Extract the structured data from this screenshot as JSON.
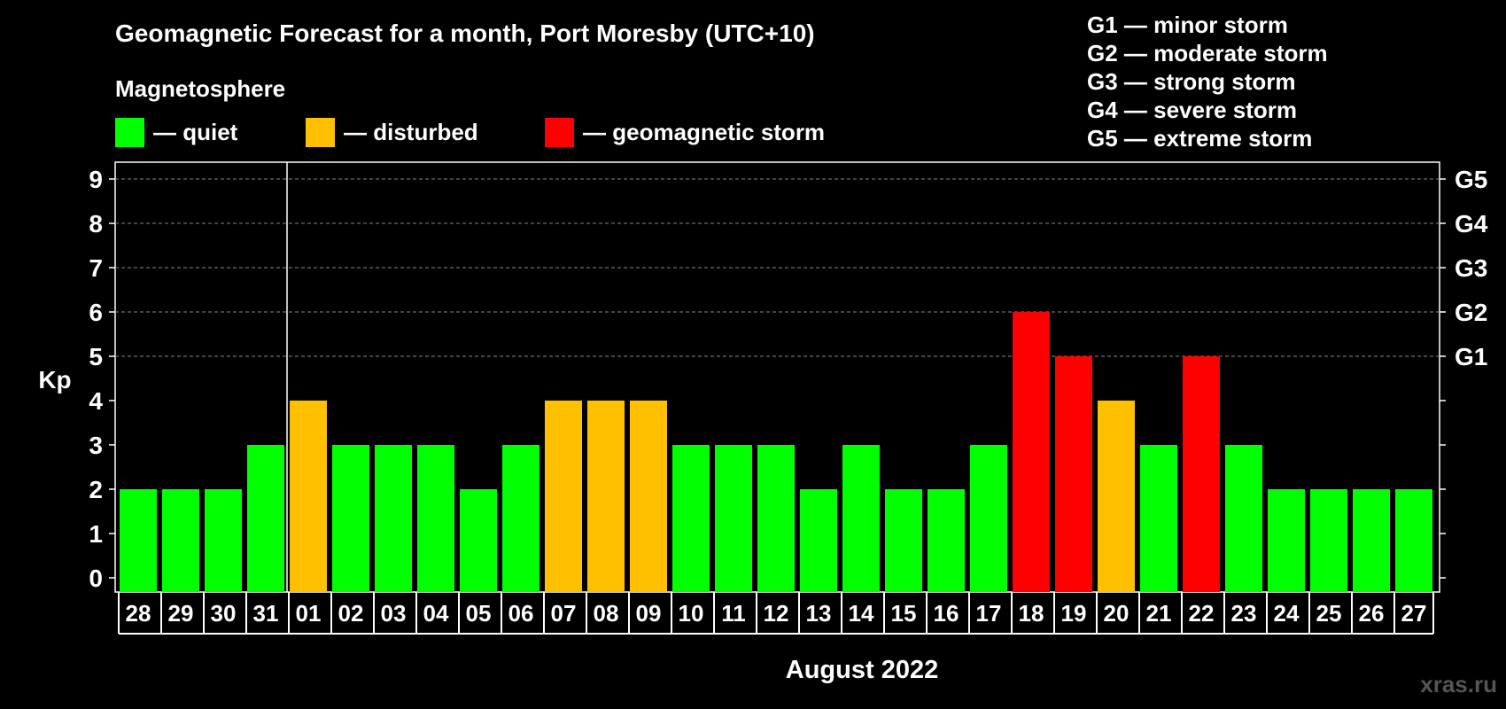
{
  "header": {
    "title": "Geomagnetic Forecast for a month, Port Moresby (UTC+10)",
    "subtitle": "Magnetosphere"
  },
  "legend": [
    {
      "label": "— quiet",
      "color": "#00ff00"
    },
    {
      "label": "— disturbed",
      "color": "#ffc000"
    },
    {
      "label": "— geomagnetic storm",
      "color": "#ff0000"
    }
  ],
  "storm_scale": [
    "G1 — minor storm",
    "G2 — moderate storm",
    "G3 — strong storm",
    "G4 — severe storm",
    "G5 — extreme storm"
  ],
  "watermark": "xras.ru",
  "colors": {
    "quiet": "#00ff00",
    "disturbed": "#ffc000",
    "storm": "#ff0000"
  },
  "chart_data": {
    "type": "bar",
    "title": "Geomagnetic Forecast for a month, Port Moresby (UTC+10)",
    "xlabel": "August 2022",
    "ylabel": "Kp",
    "ylim": [
      0,
      9
    ],
    "yticks": [
      "0",
      "1",
      "2",
      "3",
      "4",
      "5",
      "6",
      "7",
      "8",
      "9"
    ],
    "g_labels": [
      {
        "kp": 5,
        "label": "G1"
      },
      {
        "kp": 6,
        "label": "G2"
      },
      {
        "kp": 7,
        "label": "G3"
      },
      {
        "kp": 8,
        "label": "G4"
      },
      {
        "kp": 9,
        "label": "G5"
      }
    ],
    "categories": [
      "28",
      "29",
      "30",
      "31",
      "01",
      "02",
      "03",
      "04",
      "05",
      "06",
      "07",
      "08",
      "09",
      "10",
      "11",
      "12",
      "13",
      "14",
      "15",
      "16",
      "17",
      "18",
      "19",
      "20",
      "21",
      "22",
      "23",
      "24",
      "25",
      "26",
      "27"
    ],
    "values": [
      2,
      2,
      2,
      3,
      4,
      3,
      3,
      3,
      2,
      3,
      4,
      4,
      4,
      3,
      3,
      3,
      2,
      3,
      2,
      2,
      3,
      6,
      5,
      4,
      3,
      5,
      3,
      2,
      2,
      2,
      2
    ],
    "month_divider_after": "31",
    "grid": true
  }
}
